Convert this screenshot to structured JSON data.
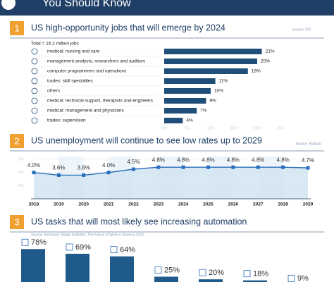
{
  "header": {
    "title": "You Should Know"
  },
  "chart_data": [
    {
      "type": "hbar",
      "number": "1",
      "title": "US high-opportunity jobs that will emerge by 2024",
      "source": "Source: IDC",
      "subtitle": "Total = 16.2 million jobs",
      "categories": [
        "medical: nursing and care",
        "management analysts, researchers and auditors",
        "computer programmers and operations",
        "trades: skill specialties",
        "others",
        "medical: technical support, therapists and engineers",
        "medical: management and physicians",
        "trades: supervision"
      ],
      "values": [
        21,
        20,
        18,
        11,
        10,
        9,
        7,
        4
      ],
      "value_labels": [
        "21%",
        "20%",
        "18%",
        "11%",
        "10%",
        "9%",
        "7%",
        "4%"
      ],
      "color": "#1f4e79",
      "xlim": [
        0,
        25
      ],
      "xticks": [
        {
          "value": 0,
          "label": "0%"
        },
        {
          "value": 5,
          "label": "5%"
        },
        {
          "value": 10,
          "label": "10%"
        },
        {
          "value": 15,
          "label": "15%"
        },
        {
          "value": 20,
          "label": "20%"
        },
        {
          "value": 25,
          "label": "25%"
        }
      ]
    },
    {
      "type": "area",
      "number": "2",
      "title": "US unemployment will continue to see low rates up to 2029",
      "source": "Source: Statista",
      "categories": [
        "2018",
        "2019",
        "2020",
        "2021",
        "2022",
        "2023",
        "2024",
        "2025",
        "2026",
        "2027",
        "2028",
        "2029"
      ],
      "values": [
        4.0,
        3.6,
        3.6,
        4.0,
        4.5,
        4.8,
        4.8,
        4.8,
        4.8,
        4.8,
        4.8,
        4.7
      ],
      "value_labels": [
        "4.0%",
        "3.6%",
        "3.6%",
        "4.0%",
        "4.5%",
        "4.8%",
        "4.8%",
        "4.8%",
        "4.8%",
        "4.8%",
        "4.8%",
        "4.7%"
      ],
      "color": "#2a6ebb",
      "ylim": [
        0,
        6
      ],
      "yticks": [
        {
          "value": 2,
          "label": "2%"
        },
        {
          "value": 4,
          "label": "4%"
        },
        {
          "value": 6,
          "label": "6%"
        }
      ]
    },
    {
      "type": "bar",
      "number": "3",
      "title": "US tasks that will most likely see increasing automation",
      "source": "Source: McKinsey Global Institute's The Future of Work in America 2019",
      "values": [
        78,
        69,
        64,
        25,
        20,
        18,
        9
      ],
      "value_labels": [
        "78%",
        "69%",
        "64%",
        "25%",
        "20%",
        "18%",
        "9%"
      ],
      "color": "#1f5a8a"
    }
  ]
}
